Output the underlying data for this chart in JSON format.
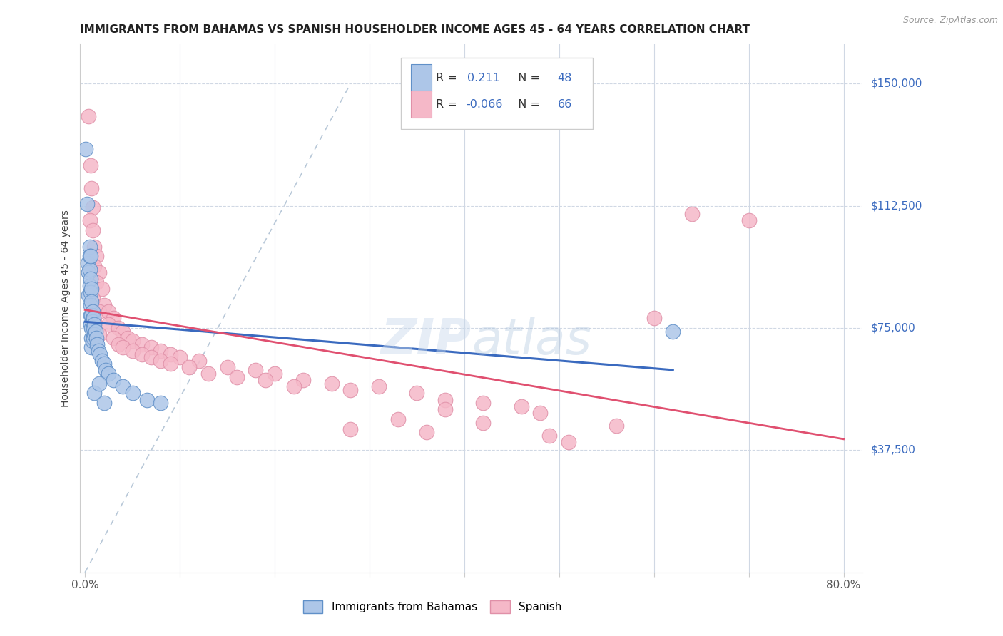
{
  "title": "IMMIGRANTS FROM BAHAMAS VS SPANISH HOUSEHOLDER INCOME AGES 45 - 64 YEARS CORRELATION CHART",
  "source": "Source: ZipAtlas.com",
  "ylabel": "Householder Income Ages 45 - 64 years",
  "xlim": [
    -0.005,
    0.82
  ],
  "ylim": [
    0,
    162000
  ],
  "xtick_positions": [
    0.0,
    0.1,
    0.2,
    0.3,
    0.4,
    0.5,
    0.6,
    0.7,
    0.8
  ],
  "xticklabels": [
    "0.0%",
    "",
    "",
    "",
    "",
    "",
    "",
    "",
    "80.0%"
  ],
  "ytick_labels_right": [
    "$150,000",
    "$112,500",
    "$75,000",
    "$37,500"
  ],
  "ytick_values_right": [
    150000,
    112500,
    75000,
    37500
  ],
  "r_blue": 0.211,
  "n_blue": 48,
  "r_pink": -0.066,
  "n_pink": 66,
  "blue_color": "#adc6e8",
  "pink_color": "#f5b8c8",
  "trend_blue_color": "#3a6abf",
  "trend_pink_color": "#e05070",
  "watermark": "ZIPatlas",
  "blue_scatter": [
    [
      0.001,
      130000
    ],
    [
      0.002,
      113000
    ],
    [
      0.003,
      95000
    ],
    [
      0.004,
      92000
    ],
    [
      0.004,
      85000
    ],
    [
      0.005,
      100000
    ],
    [
      0.005,
      97000
    ],
    [
      0.005,
      93000
    ],
    [
      0.005,
      88000
    ],
    [
      0.006,
      97000
    ],
    [
      0.006,
      90000
    ],
    [
      0.006,
      86000
    ],
    [
      0.006,
      82000
    ],
    [
      0.006,
      79000
    ],
    [
      0.006,
      76000
    ],
    [
      0.007,
      87000
    ],
    [
      0.007,
      83000
    ],
    [
      0.007,
      79000
    ],
    [
      0.007,
      75000
    ],
    [
      0.007,
      72000
    ],
    [
      0.007,
      69000
    ],
    [
      0.008,
      80000
    ],
    [
      0.008,
      77000
    ],
    [
      0.008,
      74000
    ],
    [
      0.008,
      71000
    ],
    [
      0.009,
      78000
    ],
    [
      0.009,
      75000
    ],
    [
      0.009,
      72000
    ],
    [
      0.01,
      76000
    ],
    [
      0.01,
      73000
    ],
    [
      0.011,
      74000
    ],
    [
      0.012,
      72000
    ],
    [
      0.013,
      70000
    ],
    [
      0.014,
      68000
    ],
    [
      0.016,
      67000
    ],
    [
      0.018,
      65000
    ],
    [
      0.02,
      64000
    ],
    [
      0.022,
      62000
    ],
    [
      0.025,
      61000
    ],
    [
      0.03,
      59000
    ],
    [
      0.04,
      57000
    ],
    [
      0.05,
      55000
    ],
    [
      0.065,
      53000
    ],
    [
      0.08,
      52000
    ],
    [
      0.01,
      55000
    ],
    [
      0.015,
      58000
    ],
    [
      0.02,
      52000
    ],
    [
      0.62,
      74000
    ]
  ],
  "pink_scatter": [
    [
      0.004,
      140000
    ],
    [
      0.006,
      125000
    ],
    [
      0.007,
      118000
    ],
    [
      0.008,
      112000
    ],
    [
      0.005,
      108000
    ],
    [
      0.008,
      105000
    ],
    [
      0.01,
      100000
    ],
    [
      0.012,
      97000
    ],
    [
      0.01,
      94000
    ],
    [
      0.015,
      92000
    ],
    [
      0.012,
      89000
    ],
    [
      0.018,
      87000
    ],
    [
      0.008,
      84000
    ],
    [
      0.02,
      82000
    ],
    [
      0.015,
      80000
    ],
    [
      0.025,
      80000
    ],
    [
      0.01,
      77000
    ],
    [
      0.03,
      78000
    ],
    [
      0.025,
      76000
    ],
    [
      0.035,
      75000
    ],
    [
      0.015,
      73000
    ],
    [
      0.04,
      74000
    ],
    [
      0.03,
      72000
    ],
    [
      0.045,
      72000
    ],
    [
      0.035,
      70000
    ],
    [
      0.05,
      71000
    ],
    [
      0.04,
      69000
    ],
    [
      0.06,
      70000
    ],
    [
      0.05,
      68000
    ],
    [
      0.07,
      69000
    ],
    [
      0.06,
      67000
    ],
    [
      0.08,
      68000
    ],
    [
      0.07,
      66000
    ],
    [
      0.09,
      67000
    ],
    [
      0.08,
      65000
    ],
    [
      0.1,
      66000
    ],
    [
      0.09,
      64000
    ],
    [
      0.12,
      65000
    ],
    [
      0.11,
      63000
    ],
    [
      0.15,
      63000
    ],
    [
      0.13,
      61000
    ],
    [
      0.18,
      62000
    ],
    [
      0.16,
      60000
    ],
    [
      0.2,
      61000
    ],
    [
      0.19,
      59000
    ],
    [
      0.23,
      59000
    ],
    [
      0.22,
      57000
    ],
    [
      0.26,
      58000
    ],
    [
      0.28,
      56000
    ],
    [
      0.31,
      57000
    ],
    [
      0.35,
      55000
    ],
    [
      0.38,
      53000
    ],
    [
      0.42,
      52000
    ],
    [
      0.46,
      51000
    ],
    [
      0.38,
      50000
    ],
    [
      0.48,
      49000
    ],
    [
      0.33,
      47000
    ],
    [
      0.42,
      46000
    ],
    [
      0.28,
      44000
    ],
    [
      0.36,
      43000
    ],
    [
      0.64,
      110000
    ],
    [
      0.7,
      108000
    ],
    [
      0.56,
      45000
    ],
    [
      0.6,
      78000
    ],
    [
      0.49,
      42000
    ],
    [
      0.51,
      40000
    ]
  ]
}
